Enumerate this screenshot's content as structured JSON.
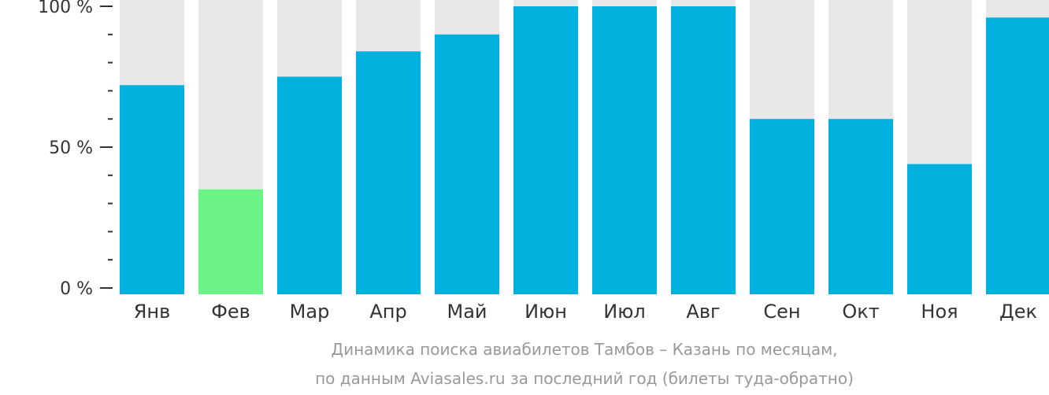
{
  "chart_data": {
    "type": "bar",
    "categories": [
      "Янв",
      "Фев",
      "Мар",
      "Апр",
      "Май",
      "Июн",
      "Июл",
      "Авг",
      "Сен",
      "Окт",
      "Ноя",
      "Дек"
    ],
    "values": [
      72,
      35,
      75,
      84,
      90,
      100,
      100,
      100,
      60,
      60,
      44,
      96
    ],
    "highlight_index": 1,
    "ylim": [
      0,
      100
    ],
    "yticks": [
      {
        "value": 0,
        "label": "0 %"
      },
      {
        "value": 50,
        "label": "50 %"
      },
      {
        "value": 100,
        "label": "100 %"
      }
    ],
    "minor_tick_step": 10,
    "caption": [
      "Динамика поиска авиабилетов Тамбов – Казань по месяцам,",
      "по данным Aviasales.ru за последний год (билеты туда-обратно)"
    ],
    "colors": {
      "bar": "#00b1dd",
      "highlight": "#6bf486",
      "background_bar": "#e8e8e8",
      "axis": "#333333",
      "caption": "#999999"
    },
    "grid": false,
    "legend": "none"
  }
}
